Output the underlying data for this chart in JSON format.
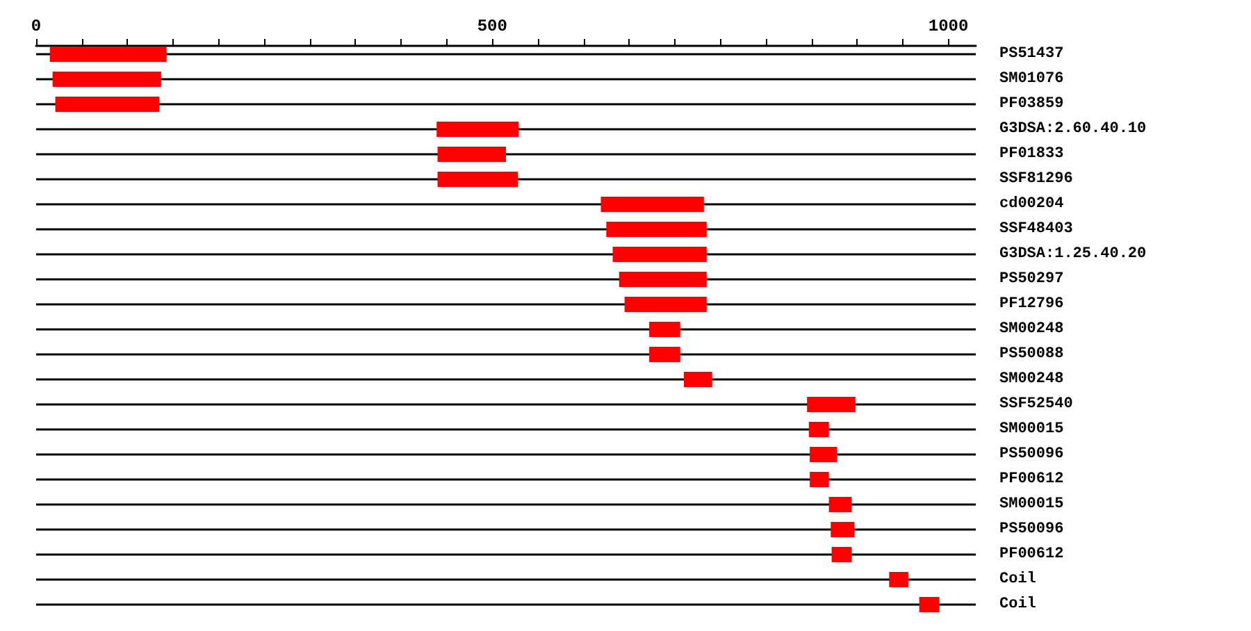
{
  "chart_data": {
    "type": "bar",
    "orientation": "horizontal",
    "categories": [
      "PS51437",
      "SM01076",
      "PF03859",
      "G3DSA:2.60.40.10",
      "PF01833",
      "SSF81296",
      "cd00204",
      "SSF48403",
      "G3DSA:1.25.40.20",
      "PS50297",
      "PF12796",
      "SM00248",
      "PS50088",
      "SM00248",
      "SSF52540",
      "SM00015",
      "PS50096",
      "PF00612",
      "SM00015",
      "PS50096",
      "PF00612",
      "Coil",
      "Coil"
    ],
    "base": [
      15,
      18,
      21,
      439,
      440,
      440,
      619,
      625,
      632,
      639,
      645,
      672,
      672,
      710,
      845,
      847,
      848,
      848,
      869,
      871,
      872,
      935,
      968
    ],
    "values": [
      128,
      119,
      114,
      90,
      75,
      88,
      113,
      110,
      103,
      96,
      90,
      34,
      34,
      31,
      53,
      22,
      30,
      21,
      25,
      26,
      22,
      21,
      22
    ],
    "color": "#ff0000",
    "xlim": [
      0,
      1030
    ],
    "xticks": [
      0,
      {
        "value": 50,
        "label": null
      },
      {
        "value": 100,
        "label": null
      },
      {
        "value": 150,
        "label": null
      },
      {
        "value": 200,
        "label": null
      },
      {
        "value": 250,
        "label": null
      },
      {
        "value": 300,
        "label": null
      },
      {
        "value": 350,
        "label": null
      },
      {
        "value": 400,
        "label": null
      },
      {
        "value": 450,
        "label": null
      },
      500,
      {
        "value": 550,
        "label": null
      },
      {
        "value": 600,
        "label": null
      },
      {
        "value": 650,
        "label": null
      },
      {
        "value": 700,
        "label": null
      },
      {
        "value": 750,
        "label": null
      },
      {
        "value": 800,
        "label": null
      },
      {
        "value": 850,
        "label": null
      },
      {
        "value": 900,
        "label": null
      },
      {
        "value": 950,
        "label": null
      },
      1000
    ],
    "grid": "y"
  }
}
